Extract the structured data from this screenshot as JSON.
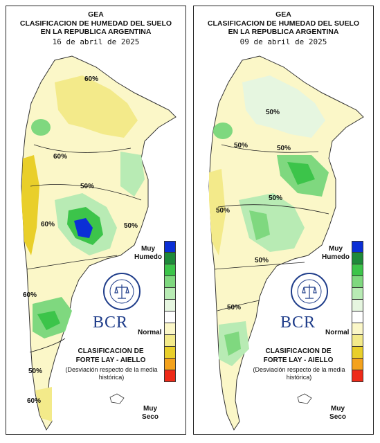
{
  "maps": [
    {
      "org": "GEA",
      "title_line1": "CLASIFICACION DE HUMEDAD DEL SUELO",
      "title_line2": "EN LA REPUBLICA ARGENTINA",
      "date": "16 de abril de 2025",
      "contour_labels": [
        "60%",
        "60%",
        "50%",
        "60%",
        "50%",
        "60%",
        "50%",
        "60%"
      ]
    },
    {
      "org": "GEA",
      "title_line1": "CLASIFICACION DE HUMEDAD DEL SUELO",
      "title_line2": "EN LA REPUBLICA ARGENTINA",
      "date": "09 de abril de 2025",
      "contour_labels": [
        "50%",
        "50%",
        "50%",
        "50%",
        "50%",
        "50%",
        "50%"
      ]
    }
  ],
  "legend": {
    "top_label": "Muy Humedo",
    "mid_label": "Normal",
    "bottom_label": "Muy Seco",
    "colors": [
      "#0b2fd6",
      "#1e8a3a",
      "#3cc44a",
      "#7fd87f",
      "#b8ebb4",
      "#e6f6e0",
      "#ffffff",
      "#fbf7c8",
      "#f3ea8a",
      "#e9cf2a",
      "#f4a21c",
      "#ee2a18"
    ]
  },
  "classification": {
    "title_line1": "CLASIFICACION DE",
    "title_line2": "FORTE LAY - AIELLO",
    "note": "(Desviación respecto de la media histórica)"
  },
  "brand": {
    "name": "BCR",
    "seal_text": "BOLSA DE COMERCIO DE ROSARIO"
  }
}
